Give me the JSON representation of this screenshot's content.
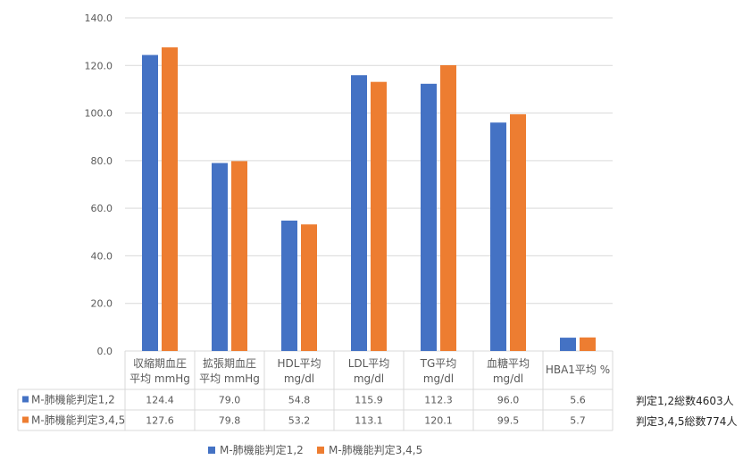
{
  "chart_data": {
    "type": "bar",
    "categories": [
      [
        "収縮期血圧",
        "平均 mmHg"
      ],
      [
        "拡張期血圧",
        "平均 mmHg"
      ],
      [
        "HDL平均",
        "mg/dl"
      ],
      [
        "LDL平均",
        "mg/dl"
      ],
      [
        "TG平均",
        "mg/dl"
      ],
      [
        "血糖平均",
        "mg/dl"
      ],
      [
        "HBA1平均 %"
      ]
    ],
    "series": [
      {
        "name": "M-肺機能判定1,2",
        "color": "#4472c4",
        "values": [
          124.4,
          79.0,
          54.8,
          115.9,
          112.3,
          96.0,
          5.6
        ],
        "table_labels": [
          "124.4",
          "79.0",
          "54.8",
          "115.9",
          "112.3",
          "96.0",
          "5.6"
        ]
      },
      {
        "name": "M-肺機能判定3,4,5",
        "color": "#ed7d31",
        "values": [
          127.6,
          79.8,
          53.2,
          113.1,
          120.1,
          99.5,
          5.7
        ],
        "table_labels": [
          "127.6",
          "79.8",
          "53.2",
          "113.1",
          "120.1",
          "99.5",
          "5.7"
        ]
      }
    ],
    "ylim": [
      0,
      140
    ],
    "yticks": [
      "0.0",
      "20.0",
      "40.0",
      "60.0",
      "80.0",
      "100.0",
      "120.0",
      "140.0"
    ],
    "grid": true,
    "legend": "bottom",
    "data_table": true
  },
  "notes": {
    "series1_total": "判定1,2総数4603人",
    "series2_total": "判定3,4,5総数774人"
  },
  "colors": {
    "grid": "#d9d9d9",
    "text": "#595959"
  }
}
